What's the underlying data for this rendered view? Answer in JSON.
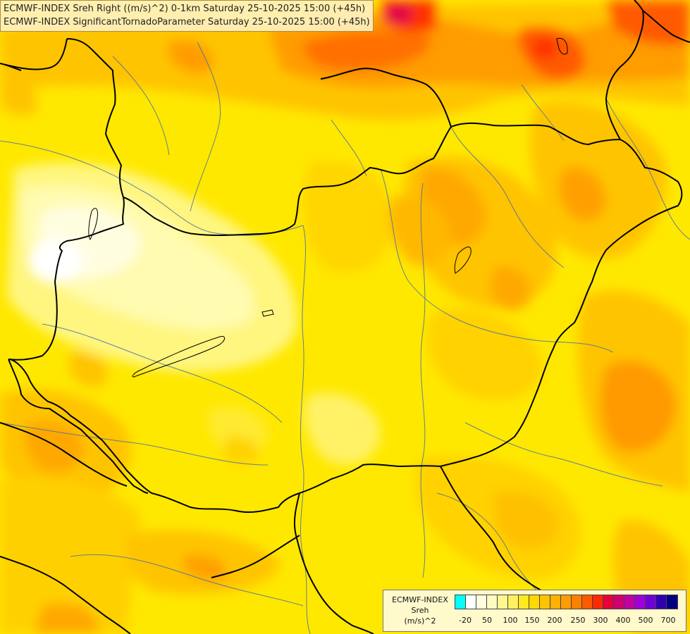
{
  "header": {
    "line1": "ECMWF-INDEX Sreh Right ((m/s)^2) 0-1km Saturday 25-10-2025 15:00 (+45h)",
    "line2": "ECMWF-INDEX SignificantTornadoParameter Saturday 25-10-2025 15:00 (+45h)"
  },
  "legend": {
    "line1": "ECMWF-INDEX",
    "line2": "Sreh",
    "line3": "(m/s)^2",
    "colors": [
      "#00ffff",
      "#ffffff",
      "#fffde0",
      "#fffac0",
      "#fff690",
      "#fff060",
      "#ffea20",
      "#ffd800",
      "#ffc400",
      "#ffb000",
      "#ff9c00",
      "#ff8000",
      "#ff5a00",
      "#ff2a00",
      "#e8003a",
      "#d00070",
      "#c000a0",
      "#a000d8",
      "#7000d8",
      "#3000b0",
      "#000080"
    ],
    "labels": [
      "-20",
      "50",
      "100",
      "150",
      "200",
      "250",
      "300",
      "400",
      "500",
      "700"
    ]
  },
  "map": {
    "fill_colors": {
      "base": "#ffe800",
      "pale": "#fffa90",
      "white": "#ffffff",
      "light_orange": "#ffc400",
      "orange": "#ff9a00",
      "deep_orange": "#ff7000",
      "red": "#ff3000",
      "magenta": "#e0004a",
      "border": "#000000",
      "rivers": "#4a6fa5"
    }
  }
}
